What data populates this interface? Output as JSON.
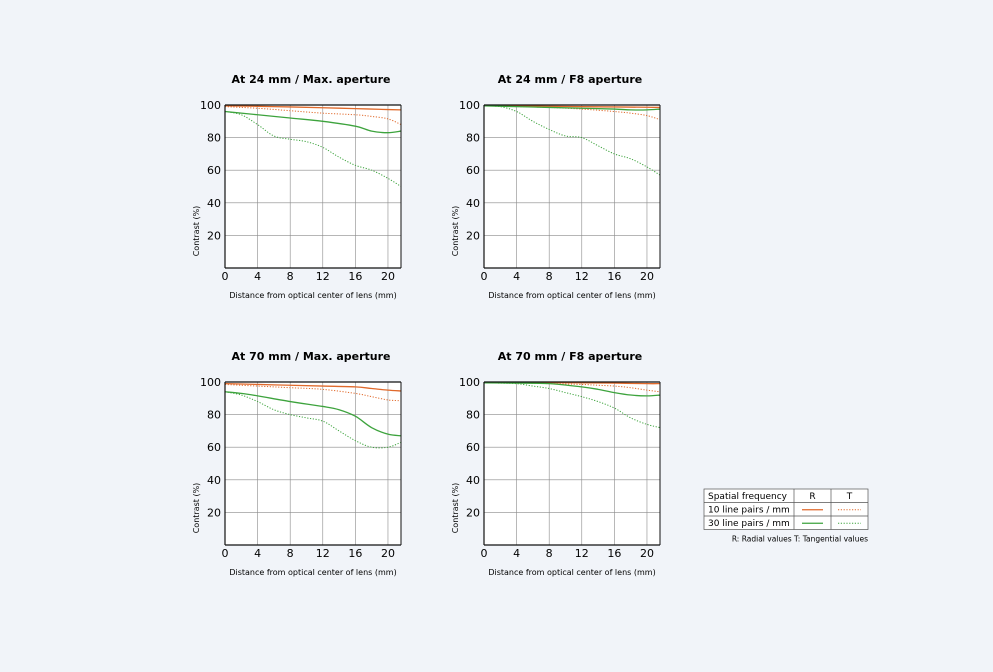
{
  "chart_data": [
    {
      "type": "line",
      "title": "At 24 mm / Max. aperture",
      "xlabel": "Distance from optical center of lens (mm)",
      "ylabel": "Contrast (%)",
      "xlim": [
        0,
        21.6
      ],
      "ylim": [
        0,
        100
      ],
      "xticks": [
        0,
        4,
        8,
        12,
        16,
        20
      ],
      "yticks": [
        20,
        40,
        60,
        80,
        100
      ],
      "grid": true,
      "series": [
        {
          "name": "10 line pairs / mm R",
          "style": "solid",
          "color": "#e0692b",
          "x": [
            0,
            4,
            8,
            12,
            16,
            20,
            21.6
          ],
          "y": [
            99.5,
            99.2,
            98.8,
            98.3,
            97.8,
            97.2,
            97
          ]
        },
        {
          "name": "10 line pairs / mm T",
          "style": "dotted",
          "color": "#e0692b",
          "x": [
            0,
            4,
            8,
            12,
            16,
            18,
            20,
            21.6
          ],
          "y": [
            99,
            98,
            96.5,
            95,
            94,
            93,
            91.5,
            88
          ]
        },
        {
          "name": "30 line pairs / mm R",
          "style": "solid",
          "color": "#3da33d",
          "x": [
            0,
            2,
            4,
            8,
            12,
            16,
            18,
            20,
            21.6
          ],
          "y": [
            96,
            95,
            94,
            92,
            90,
            87,
            84,
            83,
            84
          ]
        },
        {
          "name": "30 line pairs / mm T",
          "style": "dotted",
          "color": "#3da33d",
          "x": [
            0,
            2,
            4,
            6,
            8,
            10,
            12,
            14,
            16,
            18,
            20,
            21.6
          ],
          "y": [
            96,
            94,
            88,
            81,
            79,
            77.5,
            74,
            68,
            63,
            60,
            55,
            50
          ]
        }
      ]
    },
    {
      "type": "line",
      "title": "At 24 mm / F8 aperture",
      "xlabel": "Distance from optical center of lens (mm)",
      "ylabel": "Contrast (%)",
      "xlim": [
        0,
        21.6
      ],
      "ylim": [
        0,
        100
      ],
      "xticks": [
        0,
        4,
        8,
        12,
        16,
        20
      ],
      "yticks": [
        20,
        40,
        60,
        80,
        100
      ],
      "grid": true,
      "series": [
        {
          "name": "10 line pairs / mm R",
          "style": "solid",
          "color": "#e0692b",
          "x": [
            0,
            4,
            8,
            12,
            16,
            20,
            21.6
          ],
          "y": [
            99.7,
            99.5,
            99.2,
            99,
            98.8,
            98.6,
            98.5
          ]
        },
        {
          "name": "10 line pairs / mm T",
          "style": "dotted",
          "color": "#e0692b",
          "x": [
            0,
            4,
            8,
            12,
            16,
            18,
            20,
            21.6
          ],
          "y": [
            99.5,
            99,
            98.5,
            97.5,
            96,
            95,
            93.5,
            91
          ]
        },
        {
          "name": "30 line pairs / mm R",
          "style": "solid",
          "color": "#3da33d",
          "x": [
            0,
            4,
            8,
            12,
            16,
            18,
            20,
            21.6
          ],
          "y": [
            99.5,
            99,
            98.5,
            98,
            97.5,
            97,
            97,
            97.5
          ]
        },
        {
          "name": "30 line pairs / mm T",
          "style": "dotted",
          "color": "#3da33d",
          "x": [
            0,
            2,
            4,
            6,
            8,
            10,
            12,
            14,
            16,
            18,
            20,
            21.6
          ],
          "y": [
            99.5,
            99,
            96,
            90,
            85,
            81,
            80,
            75,
            70,
            67,
            62,
            57
          ]
        }
      ]
    },
    {
      "type": "line",
      "title": "At 70 mm / Max. aperture",
      "xlabel": "Distance from optical center of lens (mm)",
      "ylabel": "Contrast (%)",
      "xlim": [
        0,
        21.6
      ],
      "ylim": [
        0,
        100
      ],
      "xticks": [
        0,
        4,
        8,
        12,
        16,
        20
      ],
      "yticks": [
        20,
        40,
        60,
        80,
        100
      ],
      "grid": true,
      "series": [
        {
          "name": "10 line pairs / mm R",
          "style": "solid",
          "color": "#e0692b",
          "x": [
            0,
            4,
            8,
            12,
            16,
            18,
            20,
            21.6
          ],
          "y": [
            99,
            98.5,
            98,
            97.5,
            97,
            96,
            95,
            94.5
          ]
        },
        {
          "name": "10 line pairs / mm T",
          "style": "dotted",
          "color": "#e0692b",
          "x": [
            0,
            4,
            8,
            12,
            16,
            18,
            20,
            21.6
          ],
          "y": [
            98.5,
            97.5,
            96.5,
            95.5,
            93,
            91,
            89,
            88.5
          ]
        },
        {
          "name": "30 line pairs / mm R",
          "style": "solid",
          "color": "#3da33d",
          "x": [
            0,
            2,
            4,
            8,
            12,
            14,
            16,
            18,
            20,
            21.6
          ],
          "y": [
            94,
            93,
            91.5,
            88,
            85,
            83,
            79,
            72,
            68,
            67
          ]
        },
        {
          "name": "30 line pairs / mm T",
          "style": "dotted",
          "color": "#3da33d",
          "x": [
            0,
            2,
            4,
            6,
            8,
            10,
            12,
            14,
            16,
            18,
            20,
            21.6
          ],
          "y": [
            94,
            92,
            88,
            83,
            80,
            78,
            76,
            70,
            64,
            60,
            60,
            63
          ]
        }
      ]
    },
    {
      "type": "line",
      "title": "At 70 mm / F8 aperture",
      "xlabel": "Distance from optical center of lens (mm)",
      "ylabel": "Contrast (%)",
      "xlim": [
        0,
        21.6
      ],
      "ylim": [
        0,
        100
      ],
      "xticks": [
        0,
        4,
        8,
        12,
        16,
        20
      ],
      "yticks": [
        20,
        40,
        60,
        80,
        100
      ],
      "grid": true,
      "series": [
        {
          "name": "10 line pairs / mm R",
          "style": "solid",
          "color": "#e0692b",
          "x": [
            0,
            4,
            8,
            12,
            16,
            20,
            21.6
          ],
          "y": [
            99.8,
            99.7,
            99.6,
            99.5,
            99.3,
            99,
            99
          ]
        },
        {
          "name": "10 line pairs / mm T",
          "style": "dotted",
          "color": "#e0692b",
          "x": [
            0,
            4,
            8,
            12,
            14,
            16,
            18,
            20,
            21.6
          ],
          "y": [
            99.7,
            99.5,
            99,
            98.5,
            98,
            97.5,
            96.5,
            95,
            94
          ]
        },
        {
          "name": "30 line pairs / mm R",
          "style": "solid",
          "color": "#3da33d",
          "x": [
            0,
            4,
            8,
            12,
            14,
            16,
            18,
            20,
            21.6
          ],
          "y": [
            99.5,
            99.3,
            99,
            97,
            95.5,
            93.5,
            92,
            91.5,
            92
          ]
        },
        {
          "name": "30 line pairs / mm T",
          "style": "dotted",
          "color": "#3da33d",
          "x": [
            0,
            2,
            4,
            6,
            8,
            10,
            12,
            14,
            16,
            18,
            20,
            21.6
          ],
          "y": [
            99.5,
            99.3,
            99,
            97.5,
            96,
            93.5,
            91,
            88,
            84,
            78,
            74,
            72
          ]
        }
      ]
    }
  ],
  "legend": {
    "header": "Spatial frequency",
    "col_r": "R",
    "col_t": "T",
    "rows": [
      {
        "label": "10 line pairs / mm",
        "color": "#e0692b"
      },
      {
        "label": "30 line pairs / mm",
        "color": "#3da33d"
      }
    ],
    "note": "R: Radial values  T: Tangential values"
  }
}
